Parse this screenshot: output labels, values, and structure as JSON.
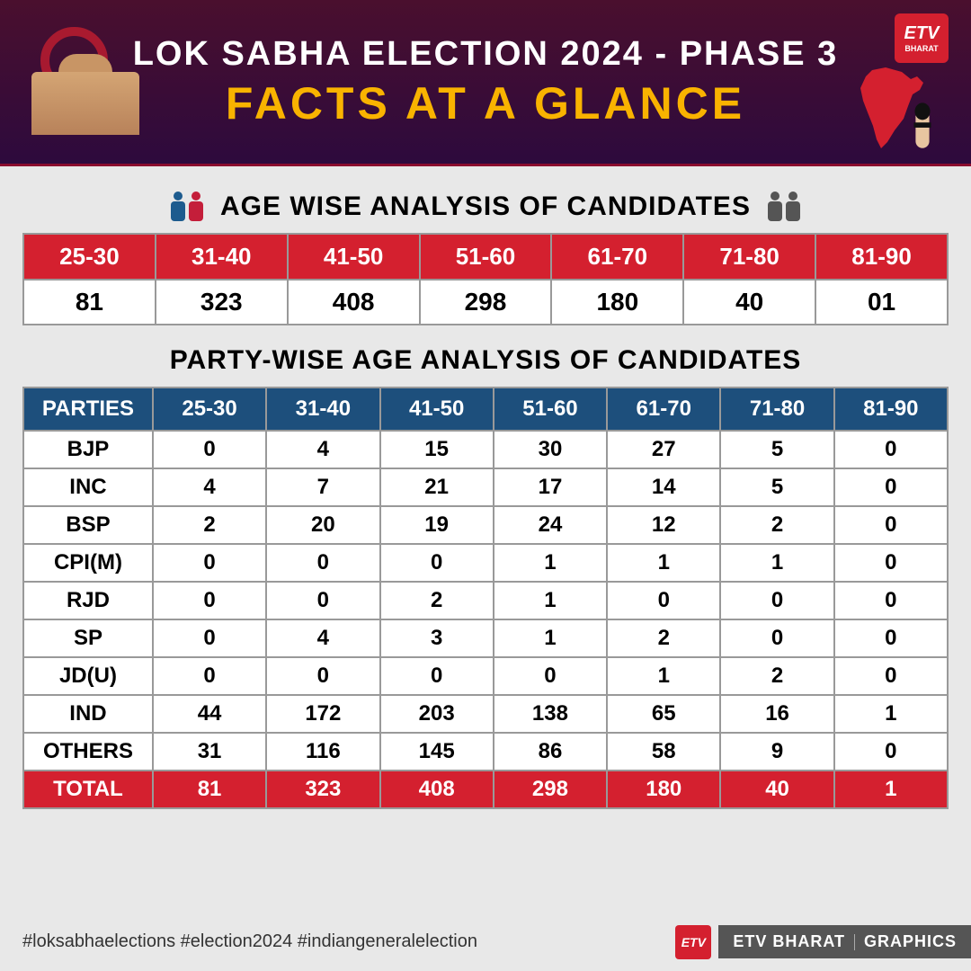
{
  "header": {
    "title": "LOK SABHA ELECTION 2024 - PHASE 3",
    "subtitle": "FACTS AT A GLANCE",
    "logo_text": "ETV",
    "logo_sub": "BHARAT"
  },
  "section1": {
    "title": "AGE WISE ANALYSIS OF CANDIDATES",
    "headers": [
      "25-30",
      "31-40",
      "41-50",
      "51-60",
      "61-70",
      "71-80",
      "81-90"
    ],
    "values": [
      "81",
      "323",
      "408",
      "298",
      "180",
      "40",
      "01"
    ]
  },
  "section2": {
    "title": "PARTY-WISE AGE ANALYSIS OF CANDIDATES",
    "headers": [
      "PARTIES",
      "25-30",
      "31-40",
      "41-50",
      "51-60",
      "61-70",
      "71-80",
      "81-90"
    ],
    "rows": [
      [
        "BJP",
        "0",
        "4",
        "15",
        "30",
        "27",
        "5",
        "0"
      ],
      [
        "INC",
        "4",
        "7",
        "21",
        "17",
        "14",
        "5",
        "0"
      ],
      [
        "BSP",
        "2",
        "20",
        "19",
        "24",
        "12",
        "2",
        "0"
      ],
      [
        "CPI(M)",
        "0",
        "0",
        "0",
        "1",
        "1",
        "1",
        "0"
      ],
      [
        "RJD",
        "0",
        "0",
        "2",
        "1",
        "0",
        "0",
        "0"
      ],
      [
        "SP",
        "0",
        "4",
        "3",
        "1",
        "2",
        "0",
        "0"
      ],
      [
        "JD(U)",
        "0",
        "0",
        "0",
        "0",
        "1",
        "2",
        "0"
      ],
      [
        "IND",
        "44",
        "172",
        "203",
        "138",
        "65",
        "16",
        "1"
      ],
      [
        "OTHERS",
        "31",
        "116",
        "145",
        "86",
        "58",
        "9",
        "0"
      ]
    ],
    "total": [
      "TOTAL",
      "81",
      "323",
      "408",
      "298",
      "180",
      "40",
      "1"
    ]
  },
  "footer": {
    "hashtags": "#loksabhaelections   #election2024   #indiangeneralelection",
    "brand1": "ETV BHARAT",
    "brand2": "GRAPHICS"
  },
  "colors": {
    "red": "#d4202f",
    "blue": "#1d4f7c",
    "yellow": "#f9b300",
    "header_bg_top": "#4a0f2e",
    "header_bg_bottom": "#2d0a3d",
    "body_bg": "#e8e8e8"
  }
}
